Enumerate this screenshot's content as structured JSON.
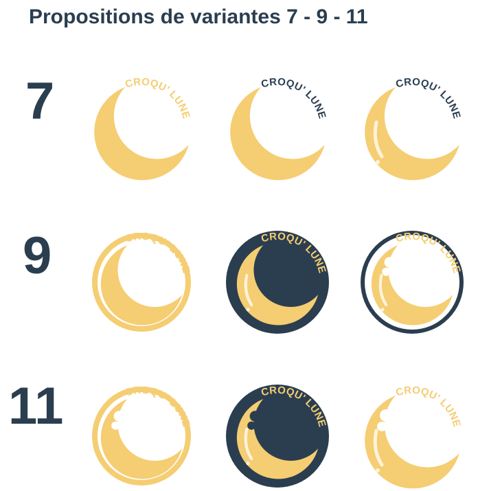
{
  "title": "Propositions de variantes 7 - 9 - 11",
  "brand_text": "CROQU' LUNE",
  "colors": {
    "moon": "#f5cd72",
    "navy": "#2b3e50",
    "highlight": "#ffffff"
  },
  "rows": [
    {
      "label": "7",
      "logos": [
        {
          "style": "moon",
          "text_color": "#f5cd72",
          "bite": false,
          "shine": false
        },
        {
          "style": "moon",
          "text_color": "#2b3e50",
          "bite": false,
          "shine": false
        },
        {
          "style": "moon",
          "text_color": "#2b3e50",
          "bite": false,
          "shine": true
        }
      ]
    },
    {
      "label": "9",
      "logos": [
        {
          "style": "ring",
          "text_color": "#f5cd72",
          "bite": false,
          "shine": false
        },
        {
          "style": "navy-disc",
          "text_color": "#f5cd72",
          "bite": false,
          "shine": true
        },
        {
          "style": "navy-ring",
          "text_color": "#f5cd72",
          "bite": true,
          "shine": true
        }
      ]
    },
    {
      "label": "11",
      "logos": [
        {
          "style": "ring",
          "text_color": "#f5cd72",
          "bite": true,
          "shine": false
        },
        {
          "style": "navy-disc",
          "text_color": "#f5cd72",
          "bite": true,
          "shine": true
        },
        {
          "style": "moon",
          "text_color": "#f5cd72",
          "bite": true,
          "shine": true
        }
      ]
    }
  ]
}
